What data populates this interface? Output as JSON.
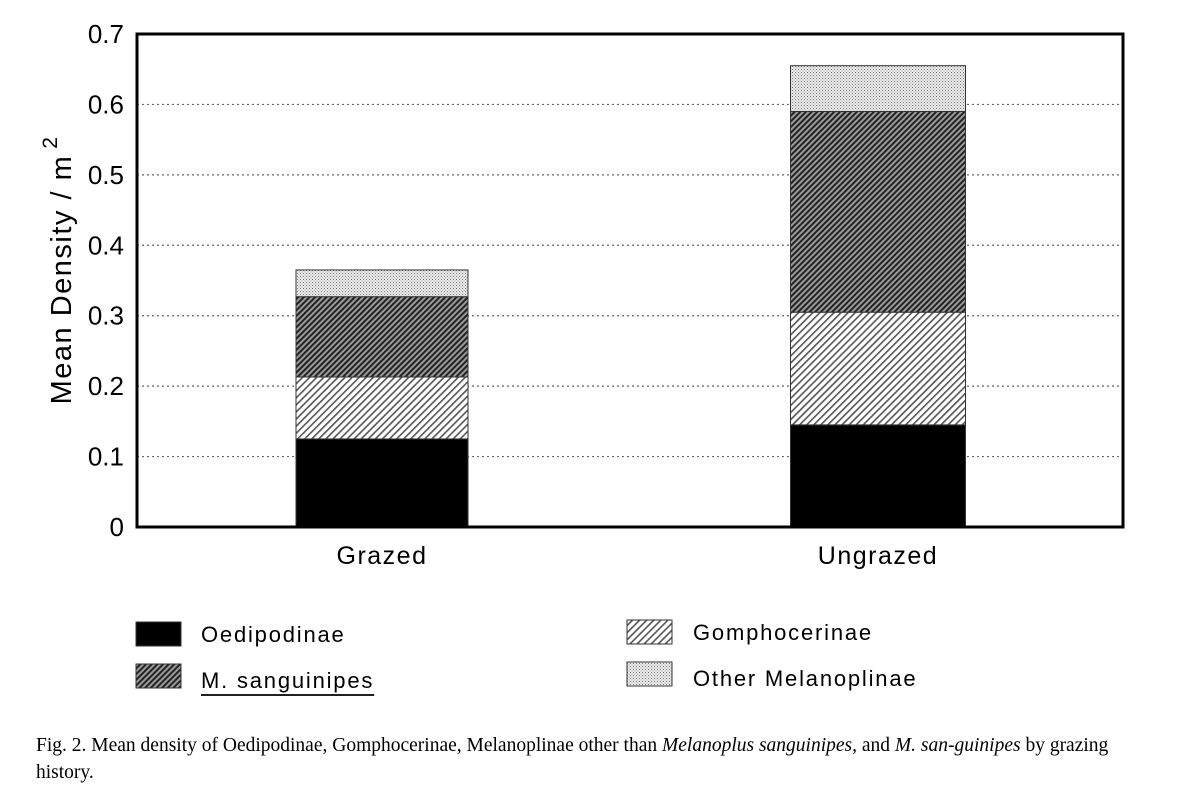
{
  "chart_data": {
    "type": "bar",
    "stacked": true,
    "categories": [
      "Grazed",
      "Ungrazed"
    ],
    "series": [
      {
        "name": "Oedipodinae",
        "values": [
          0.125,
          0.145
        ]
      },
      {
        "name": "Gomphocerinae",
        "values": [
          0.088,
          0.16
        ]
      },
      {
        "name": "M. sanguinipes",
        "values": [
          0.114,
          0.285
        ]
      },
      {
        "name": "Other Melanoplinae",
        "values": [
          0.038,
          0.065
        ]
      }
    ],
    "ylabel": "Mean Density / m",
    "ylabel_superscript": "2",
    "ylim": [
      0,
      0.7
    ],
    "yticks": [
      "0",
      "0.1",
      "0.2",
      "0.3",
      "0.4",
      "0.5",
      "0.6",
      "0.7"
    ],
    "grid": "horizontal dotted",
    "legend_placement": "bottom, two columns",
    "series_fills": [
      "solid black",
      "fine diagonal hatch",
      "dense dark diagonal hatch",
      "light stipple"
    ]
  },
  "caption": {
    "p1": "Fig. 2. Mean density of Oedipodinae, Gomphocerinae, Melanoplinae other than ",
    "i1": "Melanoplus sanguinipes,",
    "p2": " and ",
    "i2": "M. san-guinipes",
    "p3": " by grazing history."
  }
}
